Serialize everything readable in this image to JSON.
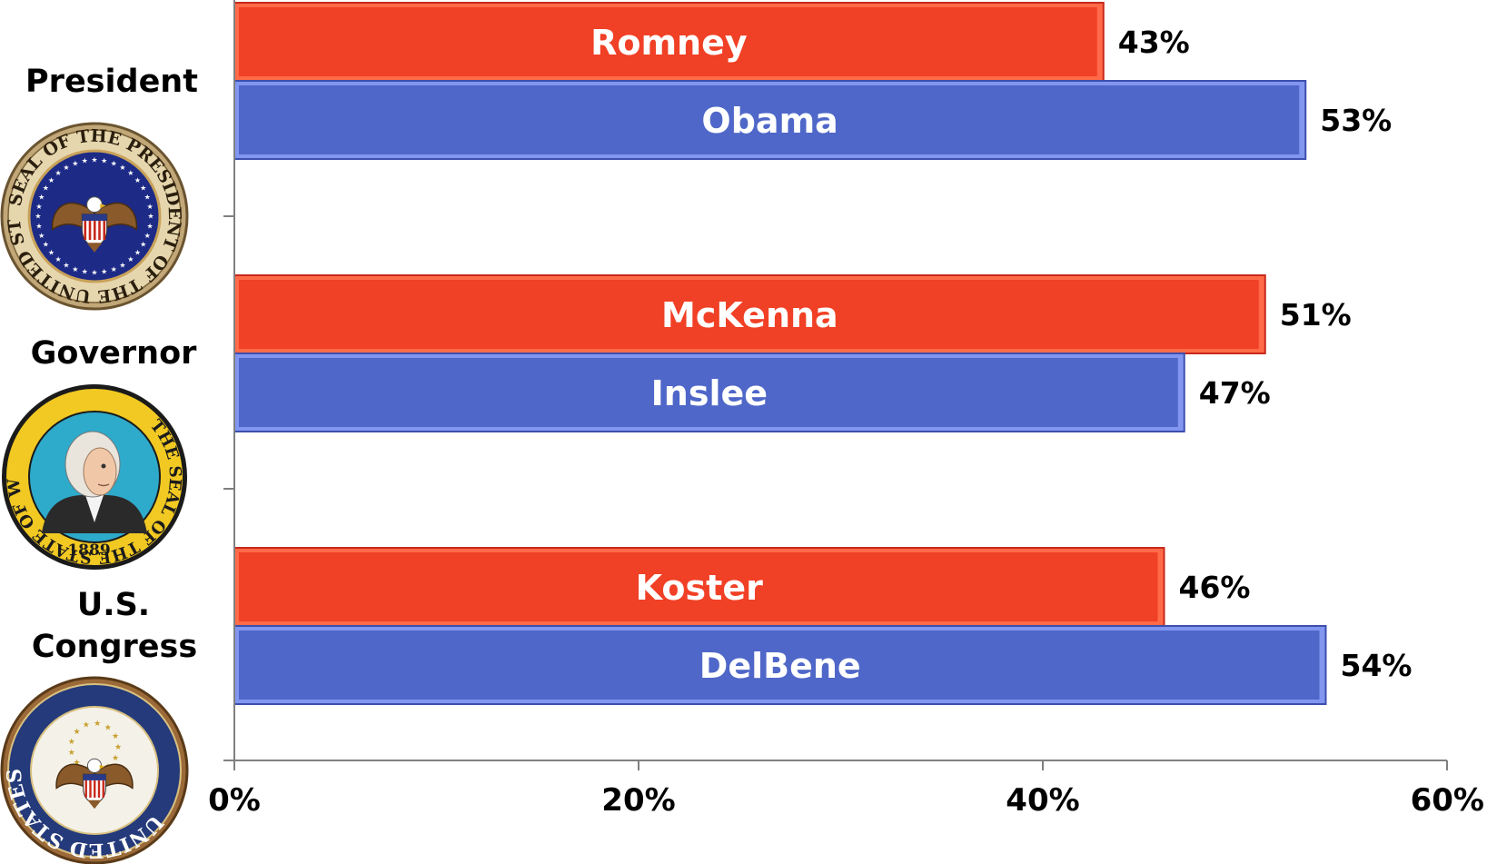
{
  "chart_data": {
    "type": "bar",
    "orientation": "horizontal",
    "categories": [
      {
        "label_lines": [
          "President"
        ],
        "seal": "presidential-seal",
        "seal_text": "SEAL OF THE PRESIDENT OF THE UNITED STATES"
      },
      {
        "label_lines": [
          "Governor"
        ],
        "seal": "washington-state-seal",
        "seal_text": "THE SEAL OF THE STATE OF WASHINGTON",
        "seal_year": "1889"
      },
      {
        "label_lines": [
          "U.S.",
          "Congress"
        ],
        "seal": "us-congress-seal",
        "seal_text": "UNITED STATES CONGRESS"
      }
    ],
    "bars": [
      {
        "category": 0,
        "candidate": "Romney",
        "value": 43,
        "value_label": "43%",
        "party": "republican"
      },
      {
        "category": 0,
        "candidate": "Obama",
        "value": 53,
        "value_label": "53%",
        "party": "democrat"
      },
      {
        "category": 1,
        "candidate": "McKenna",
        "value": 51,
        "value_label": "51%",
        "party": "republican"
      },
      {
        "category": 1,
        "candidate": "Inslee",
        "value": 47,
        "value_label": "47%",
        "party": "democrat"
      },
      {
        "category": 2,
        "candidate": "Koster",
        "value": 46,
        "value_label": "46%",
        "party": "republican"
      },
      {
        "category": 2,
        "candidate": "DelBene",
        "value": 54,
        "value_label": "54%",
        "party": "democrat"
      }
    ],
    "xlim": [
      0,
      60
    ],
    "x_ticks": [
      {
        "value": 0,
        "label": "0%"
      },
      {
        "value": 20,
        "label": "20%"
      },
      {
        "value": 40,
        "label": "40%"
      },
      {
        "value": 60,
        "label": "60%"
      }
    ],
    "grid": false,
    "legend": "none",
    "colors": {
      "republican": "#F04025",
      "republican_edge": "#C8281A",
      "republican_inner": "#FF6A48",
      "democrat": "#4F67C8",
      "democrat_edge": "#3D4FAE",
      "democrat_inner": "#8296F0",
      "axis": "#808080"
    }
  }
}
